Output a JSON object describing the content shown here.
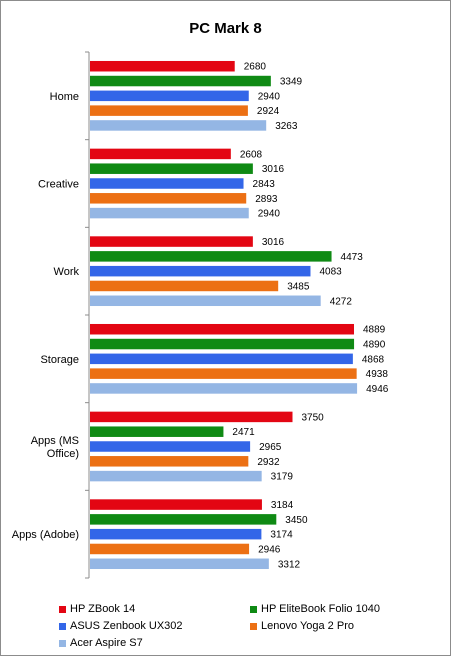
{
  "chart_data": {
    "type": "bar",
    "orientation": "horizontal",
    "title": "PC Mark 8",
    "categories": [
      "Home",
      "Creative",
      "Work",
      "Storage",
      "Apps (MS Office)",
      "Apps (Adobe)"
    ],
    "category_lines": [
      [
        "Home"
      ],
      [
        "Creative"
      ],
      [
        "Work"
      ],
      [
        "Storage"
      ],
      [
        "Apps (MS",
        "Office)"
      ],
      [
        "Apps (Adobe)"
      ]
    ],
    "series": [
      {
        "name": "HP ZBook 14",
        "color": "#e30613",
        "values": [
          2680,
          2608,
          3016,
          4889,
          3750,
          3184
        ]
      },
      {
        "name": "HP EliteBook Folio 1040",
        "color": "#0f8a14",
        "values": [
          3349,
          3016,
          4473,
          4890,
          2471,
          3450
        ]
      },
      {
        "name": "ASUS Zenbook UX302",
        "color": "#3366e8",
        "values": [
          2940,
          2843,
          4083,
          4868,
          2965,
          3174
        ]
      },
      {
        "name": "Lenovo Yoga 2 Pro",
        "color": "#ec7014",
        "values": [
          2924,
          2893,
          3485,
          4938,
          2932,
          2946
        ]
      },
      {
        "name": "Acer Aspire S7",
        "color": "#94b6e4",
        "values": [
          3263,
          2940,
          4272,
          4946,
          3179,
          3312
        ]
      }
    ],
    "xlim": [
      0,
      5000
    ],
    "grid": false,
    "legend_position": "bottom"
  }
}
